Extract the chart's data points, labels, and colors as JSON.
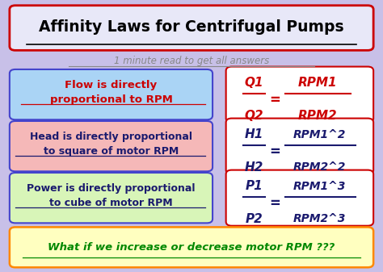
{
  "title": "Affinity Laws for Centrifugal Pumps",
  "subtitle": "1 minute read to get all answers",
  "bg_color": "#c8c0e8",
  "title_bg": "#e8e8f8",
  "title_border": "#cc0000",
  "title_color": "#000000",
  "subtitle_color": "#888888",
  "box1_text": "Flow is directly\nproportional to RPM",
  "box1_bg": "#aad4f5",
  "box1_border": "#4444cc",
  "box1_text_color": "#cc0000",
  "box2_text": "Head is directly proportional\nto square of motor RPM",
  "box2_bg": "#f5b8b8",
  "box2_border": "#4444cc",
  "box2_text_color": "#1a1a6e",
  "box3_text": "Power is directly proportional\nto cube of motor RPM",
  "box3_bg": "#d8f5b8",
  "box3_border": "#4444cc",
  "box3_text_color": "#1a1a6e",
  "eq1_num": "Q1",
  "eq1_den": "Q2",
  "eq1_rnum": "RPM1",
  "eq1_rden": "RPM2",
  "eq2_num": "H1",
  "eq2_den": "H2",
  "eq2_rnum": "RPM1^2",
  "eq2_rden": "RPM2^2",
  "eq3_num": "P1",
  "eq3_den": "P2",
  "eq3_rnum": "RPM1^3",
  "eq3_rden": "RPM2^3",
  "eq_bg": "#ffffff",
  "eq_border": "#cc0000",
  "eq1_text_color": "#cc0000",
  "eq23_text_color": "#1a1a6e",
  "bottom_text": "What if we increase or decrease motor RPM ???",
  "bottom_bg": "#ffffc0",
  "bottom_border": "#ff8800",
  "bottom_text_color": "#008800"
}
